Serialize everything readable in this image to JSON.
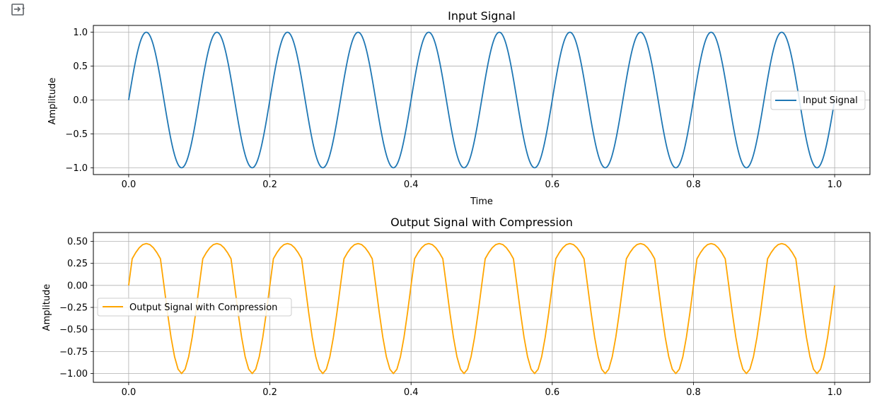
{
  "output_toggle_icon": "output-toggle-icon",
  "colors": {
    "series_input": "#1f77b4",
    "series_output": "#ffa500",
    "grid": "#b0b0b0"
  },
  "chart_data": [
    {
      "type": "line",
      "title": "Input Signal",
      "xlabel": "Time",
      "ylabel": "Amplitude",
      "xlim": [
        -0.05,
        1.05
      ],
      "ylim": [
        -1.1,
        1.1
      ],
      "xticks": [
        0.0,
        0.2,
        0.4,
        0.6,
        0.8,
        1.0
      ],
      "xtick_labels": [
        "0.0",
        "0.2",
        "0.4",
        "0.6",
        "0.8",
        "1.0"
      ],
      "yticks": [
        1.0,
        0.5,
        0.0,
        -0.5,
        -1.0
      ],
      "ytick_labels": [
        "1.0",
        "0.5",
        "0.0",
        "−0.5",
        "−1.0"
      ],
      "grid": true,
      "legend_position": "center-right",
      "series": [
        {
          "name": "Input Signal",
          "color": "#1f77b4",
          "frequency_hz": 10,
          "amplitude": 1.0,
          "x_range": [
            0,
            1
          ]
        }
      ]
    },
    {
      "type": "line",
      "title": "Output Signal with Compression",
      "xlabel": "",
      "ylabel": "Amplitude",
      "xlim": [
        -0.05,
        1.05
      ],
      "ylim": [
        -1.1,
        0.6
      ],
      "xticks": [
        0.0,
        0.2,
        0.4,
        0.6,
        0.8,
        1.0
      ],
      "xtick_labels": [
        "0.0",
        "0.2",
        "0.4",
        "0.6",
        "0.8",
        "1.0"
      ],
      "yticks": [
        0.5,
        0.25,
        0.0,
        -0.25,
        -0.5,
        -0.75,
        -1.0
      ],
      "ytick_labels": [
        "0.50",
        "0.25",
        "0.00",
        "−0.25",
        "−0.50",
        "−0.75",
        "−1.00"
      ],
      "grid": true,
      "legend_position": "center-left",
      "series": [
        {
          "name": "Output Signal with Compression",
          "color": "#ffa500",
          "frequency_hz": 10,
          "x_range": [
            0,
            1
          ],
          "threshold": 0.3,
          "ratio": 4,
          "peak": 0.53,
          "trough": -1.0
        }
      ]
    }
  ]
}
